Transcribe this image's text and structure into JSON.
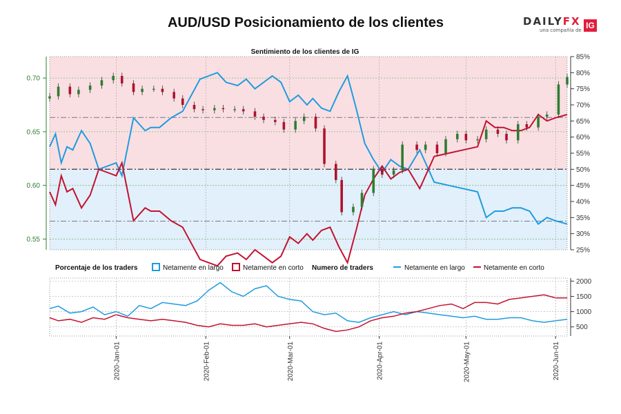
{
  "header": {
    "title": "AUD/USD Posicionamiento de los clientes",
    "brand": {
      "name_prefix": "DAILY",
      "name_suffix": "FX",
      "tagline": "una compañía de",
      "badge": "IG"
    }
  },
  "colors": {
    "long": "#1f9be0",
    "short": "#c4112f",
    "bull_candle": "#2e7d32",
    "bear_candle": "#b0122e",
    "short_zone": "#f9dfe2",
    "long_zone": "#e1f0fa",
    "left_axis": "#2e7d32"
  },
  "chart_data": [
    {
      "type": "line",
      "title": "Sentimiento de los clientes de IG",
      "left_axis": {
        "ticks": [
          "0.55",
          "0.60",
          "0.65",
          "0.70"
        ],
        "ylim": [
          0.54,
          0.72
        ]
      },
      "right_axis": {
        "ticks": [
          "25%",
          "30%",
          "35%",
          "40%",
          "45%",
          "50%",
          "55%",
          "60%",
          "65%",
          "70%",
          "75%",
          "80%",
          "85%"
        ],
        "ylim": [
          25,
          85
        ]
      },
      "x_ticks": [
        "2020-Jan-01",
        "2020-Feb-01",
        "2020-Mar-01",
        "2020-Apr-01",
        "2020-May-01",
        "2020-Jun-01"
      ],
      "x_range": [
        "2019-12-09",
        "2020-06-05"
      ],
      "reference_lines_pct": [
        50,
        66.1,
        33.9
      ],
      "series": [
        {
          "name": "Netamente en largo",
          "x": [
            "2019-12-09",
            "2019-12-11",
            "2019-12-13",
            "2019-12-15",
            "2019-12-17",
            "2019-12-20",
            "2019-12-23",
            "2019-12-26",
            "2019-12-29",
            "2020-01-01",
            "2020-01-03",
            "2020-01-05",
            "2020-01-07",
            "2020-01-09",
            "2020-01-11",
            "2020-01-13",
            "2020-01-16",
            "2020-01-20",
            "2020-01-24",
            "2020-01-27",
            "2020-01-30",
            "2020-02-02",
            "2020-02-05",
            "2020-02-08",
            "2020-02-12",
            "2020-02-15",
            "2020-02-18",
            "2020-02-21",
            "2020-02-24",
            "2020-02-27",
            "2020-03-01",
            "2020-03-04",
            "2020-03-07",
            "2020-03-09",
            "2020-03-12",
            "2020-03-15",
            "2020-03-18",
            "2020-03-21",
            "2020-03-24",
            "2020-03-27",
            "2020-03-30",
            "2020-04-02",
            "2020-04-05",
            "2020-04-08",
            "2020-04-11",
            "2020-04-15",
            "2020-04-20",
            "2020-04-25",
            "2020-04-30",
            "2020-05-05",
            "2020-05-08",
            "2020-05-11",
            "2020-05-14",
            "2020-05-17",
            "2020-05-20",
            "2020-05-23",
            "2020-05-26",
            "2020-05-29",
            "2020-06-01",
            "2020-06-05"
          ],
          "values": [
            57,
            61,
            52,
            57,
            56,
            62,
            58,
            50,
            51,
            52,
            48,
            57,
            66,
            64,
            62,
            63,
            63,
            66,
            68,
            73,
            78,
            79,
            80,
            77,
            76,
            78,
            75,
            77,
            79,
            77,
            71,
            73,
            70,
            72,
            69,
            68,
            74,
            79,
            69,
            58,
            53,
            49,
            53,
            51,
            50,
            56,
            46,
            45,
            44,
            43,
            35,
            37,
            37,
            38,
            38,
            37,
            33,
            35,
            34,
            33
          ],
          "legend_box_label": "Netamente en largo",
          "legend_line_label": "Netamente en largo"
        },
        {
          "name": "Netamente en corto",
          "x": [
            "2019-12-09",
            "2019-12-11",
            "2019-12-13",
            "2019-12-15",
            "2019-12-17",
            "2019-12-20",
            "2019-12-23",
            "2019-12-26",
            "2019-12-29",
            "2020-01-01",
            "2020-01-03",
            "2020-01-05",
            "2020-01-07",
            "2020-01-09",
            "2020-01-11",
            "2020-01-13",
            "2020-01-16",
            "2020-01-20",
            "2020-01-24",
            "2020-01-27",
            "2020-01-30",
            "2020-02-02",
            "2020-02-05",
            "2020-02-08",
            "2020-02-12",
            "2020-02-15",
            "2020-02-18",
            "2020-02-21",
            "2020-02-24",
            "2020-02-27",
            "2020-03-01",
            "2020-03-04",
            "2020-03-07",
            "2020-03-09",
            "2020-03-12",
            "2020-03-15",
            "2020-03-18",
            "2020-03-21",
            "2020-03-24",
            "2020-03-27",
            "2020-03-30",
            "2020-04-02",
            "2020-04-05",
            "2020-04-08",
            "2020-04-11",
            "2020-04-15",
            "2020-04-20",
            "2020-04-25",
            "2020-04-30",
            "2020-05-05",
            "2020-05-08",
            "2020-05-11",
            "2020-05-14",
            "2020-05-17",
            "2020-05-20",
            "2020-05-23",
            "2020-05-26",
            "2020-05-29",
            "2020-06-01",
            "2020-06-05"
          ],
          "values": [
            43,
            39,
            48,
            43,
            44,
            38,
            42,
            50,
            49,
            48,
            52,
            43,
            34,
            36,
            38,
            37,
            37,
            34,
            32,
            27,
            22,
            21,
            20,
            23,
            24,
            22,
            25,
            23,
            21,
            23,
            29,
            27,
            30,
            28,
            31,
            32,
            26,
            21,
            31,
            42,
            47,
            51,
            47,
            49,
            50,
            44,
            54,
            55,
            56,
            57,
            65,
            63,
            63,
            62,
            62,
            63,
            67,
            65,
            66,
            67
          ],
          "legend_box_label": "Netamente en corto",
          "legend_line_label": "Netamente en corto"
        },
        {
          "name": "AUD/USD",
          "type": "candlestick",
          "x": [
            "2019-12-09",
            "2019-12-12",
            "2019-12-16",
            "2019-12-19",
            "2019-12-23",
            "2019-12-27",
            "2019-12-31",
            "2020-01-03",
            "2020-01-07",
            "2020-01-10",
            "2020-01-14",
            "2020-01-17",
            "2020-01-21",
            "2020-01-24",
            "2020-01-28",
            "2020-01-31",
            "2020-02-04",
            "2020-02-07",
            "2020-02-11",
            "2020-02-14",
            "2020-02-18",
            "2020-02-21",
            "2020-02-25",
            "2020-02-28",
            "2020-03-03",
            "2020-03-06",
            "2020-03-10",
            "2020-03-13",
            "2020-03-17",
            "2020-03-19",
            "2020-03-23",
            "2020-03-26",
            "2020-03-30",
            "2020-04-02",
            "2020-04-06",
            "2020-04-09",
            "2020-04-14",
            "2020-04-17",
            "2020-04-21",
            "2020-04-24",
            "2020-04-28",
            "2020-05-01",
            "2020-05-05",
            "2020-05-08",
            "2020-05-12",
            "2020-05-15",
            "2020-05-19",
            "2020-05-22",
            "2020-05-26",
            "2020-05-29",
            "2020-06-02",
            "2020-06-05"
          ],
          "close": [
            0.683,
            0.692,
            0.685,
            0.689,
            0.693,
            0.698,
            0.702,
            0.695,
            0.687,
            0.69,
            0.69,
            0.687,
            0.681,
            0.675,
            0.671,
            0.67,
            0.672,
            0.671,
            0.671,
            0.669,
            0.664,
            0.661,
            0.659,
            0.652,
            0.66,
            0.664,
            0.653,
            0.62,
            0.605,
            0.575,
            0.58,
            0.593,
            0.615,
            0.61,
            0.614,
            0.638,
            0.633,
            0.638,
            0.63,
            0.643,
            0.648,
            0.642,
            0.643,
            0.652,
            0.648,
            0.642,
            0.657,
            0.654,
            0.664,
            0.666,
            0.694,
            0.701
          ]
        }
      ]
    },
    {
      "type": "line",
      "title": "Numero de traders",
      "axis_ticks": [
        "500",
        "1000",
        "1500",
        "2000"
      ],
      "ylim": [
        200,
        2100
      ],
      "x_ticks": [
        "2020-Jan-01",
        "2020-Feb-01",
        "2020-Mar-01",
        "2020-Apr-01",
        "2020-May-01",
        "2020-Jun-01"
      ],
      "series": [
        {
          "name": "Netamente en largo",
          "x": [
            "2019-12-09",
            "2019-12-12",
            "2019-12-16",
            "2019-12-20",
            "2019-12-24",
            "2019-12-28",
            "2020-01-01",
            "2020-01-05",
            "2020-01-09",
            "2020-01-13",
            "2020-01-17",
            "2020-01-21",
            "2020-01-25",
            "2020-01-29",
            "2020-02-02",
            "2020-02-06",
            "2020-02-10",
            "2020-02-14",
            "2020-02-18",
            "2020-02-22",
            "2020-02-26",
            "2020-03-01",
            "2020-03-05",
            "2020-03-09",
            "2020-03-13",
            "2020-03-17",
            "2020-03-21",
            "2020-03-25",
            "2020-03-29",
            "2020-04-02",
            "2020-04-06",
            "2020-04-10",
            "2020-04-14",
            "2020-04-18",
            "2020-04-22",
            "2020-04-26",
            "2020-04-30",
            "2020-05-04",
            "2020-05-08",
            "2020-05-12",
            "2020-05-16",
            "2020-05-20",
            "2020-05-24",
            "2020-05-28",
            "2020-06-01",
            "2020-06-05"
          ],
          "values": [
            1100,
            1180,
            950,
            1000,
            1150,
            900,
            1000,
            850,
            1200,
            1100,
            1300,
            1250,
            1200,
            1350,
            1700,
            1950,
            1650,
            1500,
            1750,
            1850,
            1500,
            1400,
            1350,
            1000,
            900,
            950,
            700,
            650,
            800,
            900,
            1000,
            900,
            1000,
            950,
            900,
            850,
            800,
            850,
            750,
            750,
            800,
            800,
            700,
            650,
            700,
            750
          ]
        },
        {
          "name": "Netamente en corto",
          "x": [
            "2019-12-09",
            "2019-12-12",
            "2019-12-16",
            "2019-12-20",
            "2019-12-24",
            "2019-12-28",
            "2020-01-01",
            "2020-01-05",
            "2020-01-09",
            "2020-01-13",
            "2020-01-17",
            "2020-01-21",
            "2020-01-25",
            "2020-01-29",
            "2020-02-02",
            "2020-02-06",
            "2020-02-10",
            "2020-02-14",
            "2020-02-18",
            "2020-02-22",
            "2020-02-26",
            "2020-03-01",
            "2020-03-05",
            "2020-03-09",
            "2020-03-13",
            "2020-03-17",
            "2020-03-21",
            "2020-03-25",
            "2020-03-29",
            "2020-04-02",
            "2020-04-06",
            "2020-04-10",
            "2020-04-14",
            "2020-04-18",
            "2020-04-22",
            "2020-04-26",
            "2020-04-30",
            "2020-05-04",
            "2020-05-08",
            "2020-05-12",
            "2020-05-16",
            "2020-05-20",
            "2020-05-24",
            "2020-05-28",
            "2020-06-01",
            "2020-06-05"
          ],
          "values": [
            800,
            700,
            750,
            650,
            800,
            750,
            900,
            800,
            750,
            700,
            750,
            700,
            650,
            550,
            500,
            600,
            550,
            550,
            600,
            500,
            550,
            600,
            650,
            600,
            450,
            350,
            400,
            500,
            700,
            800,
            850,
            950,
            1000,
            1100,
            1200,
            1250,
            1100,
            1300,
            1300,
            1250,
            1400,
            1450,
            1500,
            1550,
            1450,
            1450
          ]
        }
      ]
    }
  ],
  "legend": {
    "pct_title": "Porcentaje de los traders",
    "count_title": "Numero de traders"
  }
}
